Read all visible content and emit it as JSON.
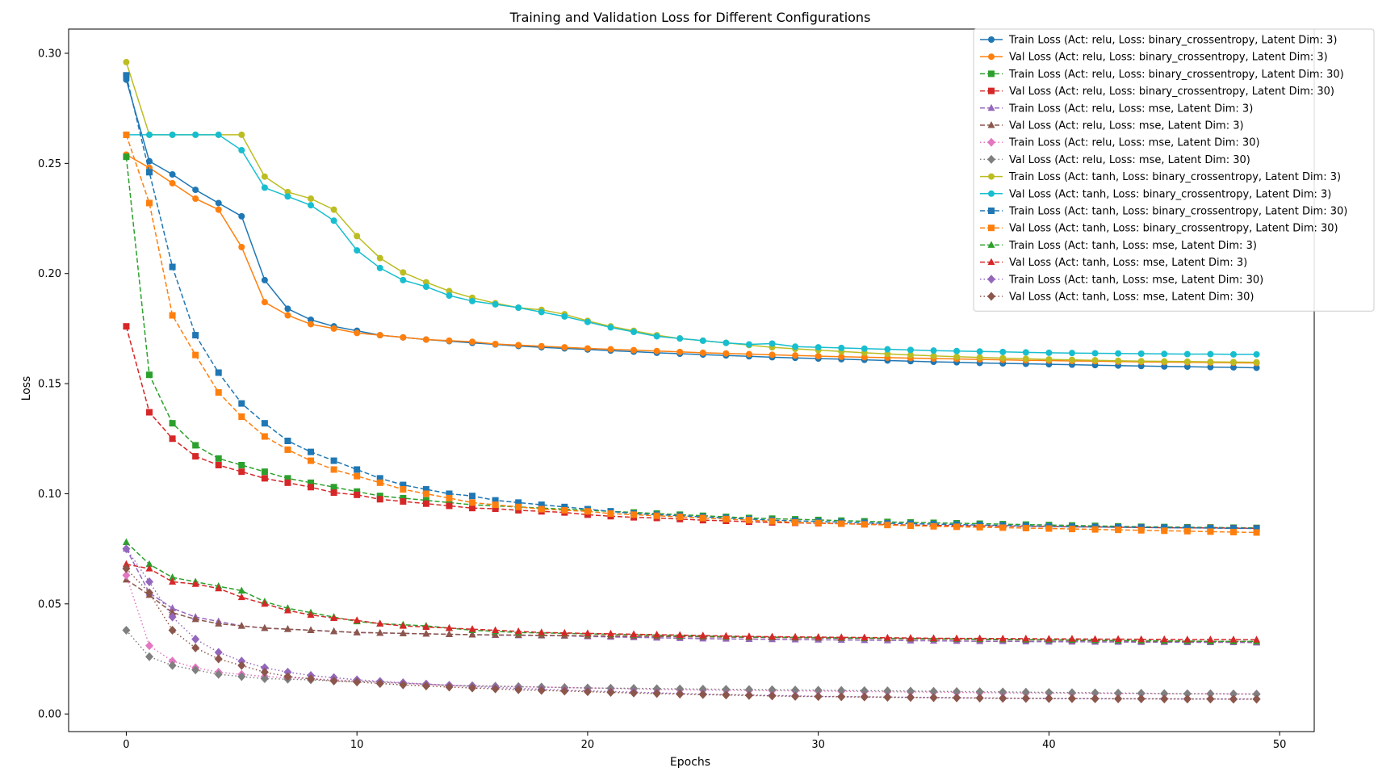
{
  "chart_data": {
    "type": "line",
    "title": "Training and Validation Loss for Different Configurations",
    "xlabel": "Epochs",
    "ylabel": "Loss",
    "xlim": [
      -2.5,
      51.5
    ],
    "ylim": [
      -0.008,
      0.311
    ],
    "xticks": [
      0,
      10,
      20,
      30,
      40,
      50
    ],
    "xtick_labels": [
      "0",
      "10",
      "20",
      "30",
      "40",
      "50"
    ],
    "yticks": [
      0.0,
      0.05,
      0.1,
      0.15,
      0.2,
      0.25,
      0.3
    ],
    "ytick_labels": [
      "0.00",
      "0.05",
      "0.10",
      "0.15",
      "0.20",
      "0.25",
      "0.30"
    ],
    "grid": false,
    "legend_placement": "top-right",
    "x": [
      0,
      1,
      2,
      3,
      4,
      5,
      6,
      7,
      8,
      9,
      10,
      11,
      12,
      13,
      14,
      15,
      16,
      17,
      18,
      19,
      20,
      21,
      22,
      23,
      24,
      25,
      26,
      27,
      28,
      29,
      30,
      31,
      32,
      33,
      34,
      35,
      36,
      37,
      38,
      39,
      40,
      41,
      42,
      43,
      44,
      45,
      46,
      47,
      48,
      49
    ],
    "series": [
      {
        "name": "Train Loss (Act: relu, Loss: binary_crossentropy, Latent Dim: 3)",
        "color": "#1f77b4",
        "line": "solid",
        "marker": "circle",
        "values": [
          0.288,
          0.251,
          0.245,
          0.238,
          0.232,
          0.226,
          0.197,
          0.184,
          0.179,
          0.176,
          0.174,
          0.172,
          0.171,
          0.17,
          0.1693,
          0.1685,
          0.1678,
          0.1671,
          0.1665,
          0.166,
          0.1655,
          0.165,
          0.1645,
          0.164,
          0.1636,
          0.1632,
          0.1628,
          0.1624,
          0.162,
          0.1617,
          0.1614,
          0.1611,
          0.1608,
          0.1605,
          0.1602,
          0.1599,
          0.1597,
          0.1594,
          0.1592,
          0.159,
          0.1588,
          0.1586,
          0.1584,
          0.1582,
          0.158,
          0.1578,
          0.1577,
          0.1575,
          0.1574,
          0.1572
        ]
      },
      {
        "name": "Val Loss (Act: relu, Loss: binary_crossentropy, Latent Dim: 3)",
        "color": "#ff7f0e",
        "line": "solid",
        "marker": "circle",
        "values": [
          0.254,
          0.248,
          0.241,
          0.234,
          0.229,
          0.212,
          0.187,
          0.181,
          0.177,
          0.175,
          0.173,
          0.172,
          0.171,
          0.17,
          0.1695,
          0.169,
          0.168,
          0.1675,
          0.167,
          0.1665,
          0.166,
          0.1656,
          0.1652,
          0.1648,
          0.1644,
          0.164,
          0.1637,
          0.1634,
          0.1631,
          0.1628,
          0.1625,
          0.1622,
          0.162,
          0.1618,
          0.1616,
          0.1614,
          0.1612,
          0.161,
          0.1608,
          0.1606,
          0.1605,
          0.1603,
          0.1602,
          0.16,
          0.1599,
          0.1598,
          0.1597,
          0.1596,
          0.1595,
          0.1594
        ]
      },
      {
        "name": "Train Loss (Act: relu, Loss: binary_crossentropy, Latent Dim: 30)",
        "color": "#2ca02c",
        "line": "dashed",
        "marker": "square",
        "values": [
          0.253,
          0.154,
          0.132,
          0.122,
          0.116,
          0.113,
          0.11,
          0.107,
          0.105,
          0.103,
          0.101,
          0.099,
          0.098,
          0.097,
          0.096,
          0.095,
          0.0945,
          0.094,
          0.0935,
          0.093,
          0.0925,
          0.092,
          0.0915,
          0.091,
          0.0905,
          0.09,
          0.0895,
          0.089,
          0.0887,
          0.0884,
          0.0881,
          0.0878,
          0.0875,
          0.0872,
          0.087,
          0.0868,
          0.0866,
          0.0864,
          0.0862,
          0.086,
          0.0858,
          0.0856,
          0.0854,
          0.0852,
          0.085,
          0.0849,
          0.0848,
          0.0847,
          0.0846,
          0.0845
        ]
      },
      {
        "name": "Val Loss (Act: relu, Loss: binary_crossentropy, Latent Dim: 30)",
        "color": "#d62728",
        "line": "dashed",
        "marker": "square",
        "values": [
          0.176,
          0.137,
          0.125,
          0.117,
          0.113,
          0.11,
          0.107,
          0.105,
          0.103,
          0.1005,
          0.0995,
          0.0975,
          0.0965,
          0.0955,
          0.0945,
          0.0935,
          0.0932,
          0.0925,
          0.092,
          0.0915,
          0.0905,
          0.0898,
          0.0893,
          0.089,
          0.0885,
          0.088,
          0.0877,
          0.0873,
          0.087,
          0.0868,
          0.0866,
          0.0864,
          0.0862,
          0.086,
          0.0858,
          0.0856,
          0.0855,
          0.0854,
          0.0853,
          0.0852,
          0.0851,
          0.085,
          0.0849,
          0.0848,
          0.0847,
          0.0846,
          0.0845,
          0.0845,
          0.0844,
          0.0843
        ]
      },
      {
        "name": "Train Loss (Act: relu, Loss: mse, Latent Dim: 3)",
        "color": "#9467bd",
        "line": "dashed",
        "marker": "triangle",
        "values": [
          0.075,
          0.055,
          0.048,
          0.044,
          0.042,
          0.04,
          0.039,
          0.0385,
          0.038,
          0.0375,
          0.037,
          0.0368,
          0.0366,
          0.0364,
          0.0362,
          0.036,
          0.0358,
          0.0357,
          0.0356,
          0.0355,
          0.0352,
          0.035,
          0.0348,
          0.0346,
          0.0344,
          0.0342,
          0.0341,
          0.034,
          0.0339,
          0.0338,
          0.0337,
          0.0336,
          0.0335,
          0.0334,
          0.0333,
          0.0332,
          0.0331,
          0.033,
          0.033,
          0.0329,
          0.0328,
          0.0328,
          0.0327,
          0.0327,
          0.0326,
          0.0326,
          0.0325,
          0.0325,
          0.0325,
          0.0324
        ]
      },
      {
        "name": "Val Loss (Act: relu, Loss: mse, Latent Dim: 3)",
        "color": "#8c564b",
        "line": "dashed",
        "marker": "triangle",
        "values": [
          0.061,
          0.054,
          0.046,
          0.043,
          0.041,
          0.04,
          0.039,
          0.0385,
          0.038,
          0.0375,
          0.037,
          0.0368,
          0.0366,
          0.0364,
          0.0362,
          0.036,
          0.0359,
          0.0358,
          0.0357,
          0.0356,
          0.0355,
          0.0354,
          0.0353,
          0.0352,
          0.0351,
          0.035,
          0.0349,
          0.0348,
          0.0347,
          0.0346,
          0.0345,
          0.0344,
          0.0343,
          0.0342,
          0.0341,
          0.034,
          0.0339,
          0.0338,
          0.0337,
          0.0336,
          0.0335,
          0.0334,
          0.0333,
          0.0332,
          0.0331,
          0.033,
          0.033,
          0.0329,
          0.0329,
          0.0328
        ]
      },
      {
        "name": "Train Loss (Act: relu, Loss: mse, Latent Dim: 30)",
        "color": "#e377c2",
        "line": "dotted",
        "marker": "diamond",
        "values": [
          0.063,
          0.031,
          0.024,
          0.021,
          0.019,
          0.018,
          0.017,
          0.0165,
          0.016,
          0.0155,
          0.015,
          0.0145,
          0.014,
          0.0135,
          0.013,
          0.0128,
          0.0126,
          0.0124,
          0.0122,
          0.012,
          0.0118,
          0.0116,
          0.0114,
          0.0112,
          0.011,
          0.0109,
          0.0108,
          0.0107,
          0.0106,
          0.0105,
          0.0104,
          0.0103,
          0.0102,
          0.0101,
          0.01,
          0.0099,
          0.0098,
          0.0097,
          0.0096,
          0.0095,
          0.0095,
          0.0094,
          0.0094,
          0.0093,
          0.0093,
          0.0092,
          0.0092,
          0.0092,
          0.0091,
          0.0091
        ]
      },
      {
        "name": "Val Loss (Act: relu, Loss: mse, Latent Dim: 30)",
        "color": "#7f7f7f",
        "line": "dotted",
        "marker": "diamond",
        "values": [
          0.038,
          0.026,
          0.022,
          0.02,
          0.018,
          0.017,
          0.016,
          0.0158,
          0.0155,
          0.015,
          0.0148,
          0.0145,
          0.0138,
          0.0135,
          0.013,
          0.0128,
          0.0126,
          0.0124,
          0.0122,
          0.012,
          0.0118,
          0.0117,
          0.0116,
          0.0115,
          0.0114,
          0.0113,
          0.0112,
          0.0111,
          0.011,
          0.0109,
          0.0108,
          0.0107,
          0.0106,
          0.0105,
          0.0104,
          0.0103,
          0.0102,
          0.0101,
          0.01,
          0.0099,
          0.0098,
          0.0097,
          0.0096,
          0.0095,
          0.0094,
          0.0093,
          0.0092,
          0.0092,
          0.0091,
          0.009
        ]
      },
      {
        "name": "Train Loss (Act: tanh, Loss: binary_crossentropy, Latent Dim: 3)",
        "color": "#bcbd22",
        "line": "solid",
        "marker": "circle",
        "values": [
          0.296,
          0.263,
          0.263,
          0.263,
          0.263,
          0.263,
          0.244,
          0.237,
          0.234,
          0.229,
          0.217,
          0.207,
          0.2005,
          0.196,
          0.192,
          0.189,
          0.1865,
          0.1845,
          0.1835,
          0.1815,
          0.1785,
          0.176,
          0.174,
          0.172,
          0.1705,
          0.1695,
          0.1685,
          0.1675,
          0.1665,
          0.1658,
          0.1652,
          0.1646,
          0.164,
          0.1635,
          0.163,
          0.1626,
          0.1622,
          0.1619,
          0.1616,
          0.1613,
          0.161,
          0.1608,
          0.1606,
          0.1604,
          0.1602,
          0.1601,
          0.16,
          0.1599,
          0.1598,
          0.1597
        ]
      },
      {
        "name": "Val Loss (Act: tanh, Loss: binary_crossentropy, Latent Dim: 3)",
        "color": "#17becf",
        "line": "solid",
        "marker": "circle",
        "values": [
          0.263,
          0.263,
          0.263,
          0.263,
          0.263,
          0.256,
          0.239,
          0.235,
          0.231,
          0.224,
          0.2105,
          0.2025,
          0.197,
          0.194,
          0.19,
          0.1875,
          0.186,
          0.1845,
          0.1825,
          0.1805,
          0.178,
          0.1755,
          0.1735,
          0.1715,
          0.1705,
          0.1695,
          0.1685,
          0.1678,
          0.1682,
          0.1668,
          0.1665,
          0.1662,
          0.1659,
          0.1656,
          0.1653,
          0.165,
          0.1648,
          0.1646,
          0.1644,
          0.1642,
          0.164,
          0.1639,
          0.1638,
          0.1637,
          0.1636,
          0.1635,
          0.1634,
          0.1634,
          0.1633,
          0.1633
        ]
      },
      {
        "name": "Train Loss (Act: tanh, Loss: binary_crossentropy, Latent Dim: 30)",
        "color": "#1f77b4",
        "line": "dashed",
        "marker": "square",
        "values": [
          0.29,
          0.246,
          0.203,
          0.172,
          0.155,
          0.141,
          0.132,
          0.124,
          0.119,
          0.115,
          0.111,
          0.107,
          0.104,
          0.102,
          0.1,
          0.099,
          0.097,
          0.096,
          0.095,
          0.094,
          0.093,
          0.092,
          0.091,
          0.0905,
          0.09,
          0.0895,
          0.089,
          0.0885,
          0.088,
          0.0877,
          0.0874,
          0.0871,
          0.0868,
          0.0866,
          0.0864,
          0.0862,
          0.086,
          0.0858,
          0.0856,
          0.0854,
          0.0852,
          0.085,
          0.0849,
          0.0848,
          0.0847,
          0.0846,
          0.0845,
          0.0844,
          0.0843,
          0.0842
        ]
      },
      {
        "name": "Val Loss (Act: tanh, Loss: binary_crossentropy, Latent Dim: 30)",
        "color": "#ff7f0e",
        "line": "dashed",
        "marker": "square",
        "values": [
          0.263,
          0.232,
          0.181,
          0.163,
          0.146,
          0.135,
          0.126,
          0.12,
          0.115,
          0.111,
          0.108,
          0.105,
          0.102,
          0.1,
          0.098,
          0.096,
          0.095,
          0.094,
          0.093,
          0.0925,
          0.092,
          0.091,
          0.0905,
          0.09,
          0.0895,
          0.089,
          0.0885,
          0.088,
          0.0875,
          0.087,
          0.0867,
          0.0864,
          0.0861,
          0.0858,
          0.0855,
          0.0852,
          0.085,
          0.0848,
          0.0846,
          0.0844,
          0.0842,
          0.084,
          0.0838,
          0.0836,
          0.0834,
          0.0832,
          0.083,
          0.0828,
          0.0826,
          0.0824
        ]
      },
      {
        "name": "Train Loss (Act: tanh, Loss: mse, Latent Dim: 3)",
        "color": "#2ca02c",
        "line": "dashed",
        "marker": "triangle",
        "values": [
          0.078,
          0.068,
          0.062,
          0.06,
          0.058,
          0.056,
          0.051,
          0.048,
          0.046,
          0.044,
          0.042,
          0.041,
          0.0405,
          0.04,
          0.039,
          0.038,
          0.0375,
          0.037,
          0.0368,
          0.0366,
          0.0364,
          0.0362,
          0.036,
          0.0358,
          0.0356,
          0.0354,
          0.0352,
          0.035,
          0.0349,
          0.0348,
          0.0347,
          0.0346,
          0.0345,
          0.0344,
          0.0343,
          0.0342,
          0.0341,
          0.034,
          0.0339,
          0.0338,
          0.0337,
          0.0336,
          0.0335,
          0.0334,
          0.0333,
          0.0332,
          0.0331,
          0.033,
          0.033,
          0.033
        ]
      },
      {
        "name": "Val Loss (Act: tanh, Loss: mse, Latent Dim: 3)",
        "color": "#d62728",
        "line": "dashed",
        "marker": "triangle",
        "values": [
          0.068,
          0.066,
          0.06,
          0.059,
          0.057,
          0.053,
          0.05,
          0.047,
          0.045,
          0.0435,
          0.0425,
          0.041,
          0.04,
          0.0395,
          0.039,
          0.0385,
          0.038,
          0.0375,
          0.037,
          0.0368,
          0.0366,
          0.0364,
          0.0362,
          0.036,
          0.0358,
          0.0356,
          0.0354,
          0.0352,
          0.0351,
          0.035,
          0.0349,
          0.0348,
          0.0347,
          0.0346,
          0.0345,
          0.0344,
          0.0343,
          0.0343,
          0.0342,
          0.0342,
          0.0341,
          0.0341,
          0.034,
          0.034,
          0.0339,
          0.0339,
          0.0338,
          0.0338,
          0.0338,
          0.0337
        ]
      },
      {
        "name": "Train Loss (Act: tanh, Loss: mse, Latent Dim: 30)",
        "color": "#9467bd",
        "line": "dotted",
        "marker": "diamond",
        "values": [
          0.075,
          0.06,
          0.044,
          0.034,
          0.028,
          0.024,
          0.021,
          0.019,
          0.0175,
          0.0165,
          0.0155,
          0.0148,
          0.0142,
          0.0136,
          0.013,
          0.0125,
          0.012,
          0.0116,
          0.0112,
          0.0108,
          0.0105,
          0.0102,
          0.0099,
          0.0096,
          0.0093,
          0.009,
          0.0088,
          0.0086,
          0.0084,
          0.0082,
          0.008,
          0.0079,
          0.0078,
          0.0077,
          0.0076,
          0.0075,
          0.0074,
          0.0073,
          0.0072,
          0.0071,
          0.0071,
          0.007,
          0.007,
          0.0069,
          0.0069,
          0.0069,
          0.0068,
          0.0068,
          0.0068,
          0.0068
        ]
      },
      {
        "name": "Val Loss (Act: tanh, Loss: mse, Latent Dim: 30)",
        "color": "#8c564b",
        "line": "dotted",
        "marker": "diamond",
        "values": [
          0.066,
          0.055,
          0.038,
          0.03,
          0.025,
          0.022,
          0.019,
          0.017,
          0.016,
          0.015,
          0.0145,
          0.0138,
          0.0132,
          0.0127,
          0.0122,
          0.0118,
          0.0114,
          0.011,
          0.0107,
          0.0104,
          0.0101,
          0.0098,
          0.0095,
          0.0093,
          0.009,
          0.0088,
          0.0086,
          0.0084,
          0.0082,
          0.008,
          0.0079,
          0.0078,
          0.0077,
          0.0076,
          0.0075,
          0.0074,
          0.0073,
          0.0072,
          0.0071,
          0.0071,
          0.007,
          0.007,
          0.0069,
          0.0069,
          0.0069,
          0.0068,
          0.0068,
          0.0068,
          0.0067,
          0.0067
        ]
      }
    ]
  }
}
